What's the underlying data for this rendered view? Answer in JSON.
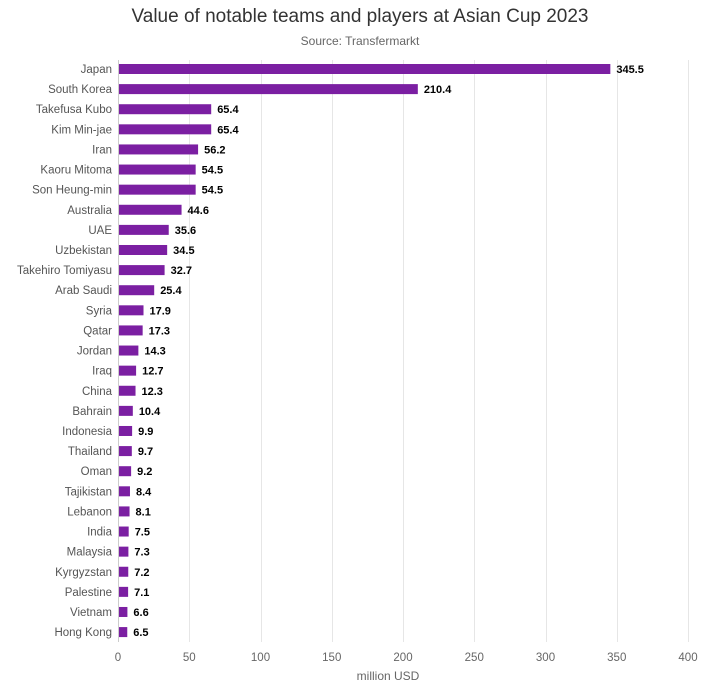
{
  "chart_data": {
    "type": "bar",
    "orientation": "horizontal",
    "title": "Value of notable teams and players at Asian Cup 2023",
    "subtitle": "Source: Transfermarkt",
    "xlabel": "million USD",
    "ylabel": "",
    "xlim": [
      0,
      400
    ],
    "xticks": [
      0,
      50,
      100,
      150,
      200,
      250,
      300,
      350,
      400
    ],
    "grid": true,
    "legend": "none",
    "bar_color": "#7b1fa2",
    "categories": [
      "Japan",
      "South Korea",
      "Takefusa Kubo",
      "Kim Min-jae",
      "Iran",
      "Kaoru Mitoma",
      "Son Heung-min",
      "Australia",
      "UAE",
      "Uzbekistan",
      "Takehiro Tomiyasu",
      "Arab Saudi",
      "Syria",
      "Qatar",
      "Jordan",
      "Iraq",
      "China",
      "Bahrain",
      "Indonesia",
      "Thailand",
      "Oman",
      "Tajikistan",
      "Lebanon",
      "India",
      "Malaysia",
      "Kyrgyzstan",
      "Palestine",
      "Vietnam",
      "Hong Kong"
    ],
    "values": [
      345.5,
      210.4,
      65.4,
      65.4,
      56.2,
      54.5,
      54.5,
      44.6,
      35.6,
      34.5,
      32.7,
      25.4,
      17.9,
      17.3,
      14.3,
      12.7,
      12.3,
      10.4,
      9.9,
      9.7,
      9.2,
      8.4,
      8.1,
      7.5,
      7.3,
      7.2,
      7.1,
      6.6,
      6.5
    ]
  }
}
